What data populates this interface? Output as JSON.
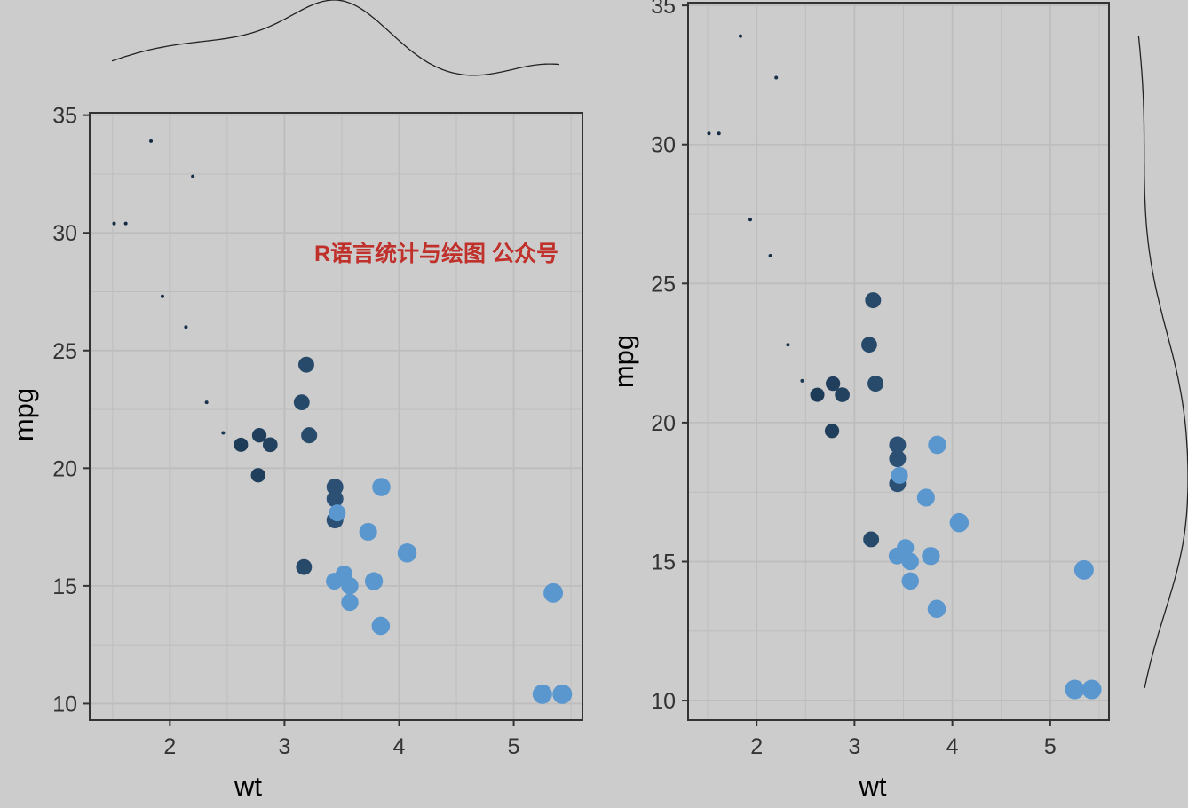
{
  "watermark": "R语言统计与绘图 公众号",
  "colors": {
    "background": "#cccccc",
    "grid": "#bdbdbd",
    "frame": "#333333",
    "density_line": "#222222",
    "watermark": "#c0312b",
    "low_color": "#132b43",
    "high_color": "#56b1f7"
  },
  "chart_data": [
    {
      "type": "scatter",
      "marginal": "x-density-top",
      "xlabel": "wt",
      "ylabel": "mpg",
      "xlim": [
        1.3,
        5.6
      ],
      "ylim": [
        9.3,
        35.1
      ],
      "xticks": [
        "2",
        "3",
        "4",
        "5"
      ],
      "yticks": [
        "10",
        "15",
        "20",
        "25",
        "30",
        "35"
      ],
      "grid": true,
      "point_size_and_color_encode": "wt",
      "points": [
        {
          "x": 1.513,
          "y": 30.4
        },
        {
          "x": 1.615,
          "y": 30.4
        },
        {
          "x": 1.835,
          "y": 33.9
        },
        {
          "x": 1.935,
          "y": 27.3
        },
        {
          "x": 2.14,
          "y": 26.0
        },
        {
          "x": 2.2,
          "y": 32.4
        },
        {
          "x": 2.32,
          "y": 22.8
        },
        {
          "x": 2.465,
          "y": 21.5
        },
        {
          "x": 2.62,
          "y": 21.0
        },
        {
          "x": 2.77,
          "y": 19.7
        },
        {
          "x": 2.78,
          "y": 21.4
        },
        {
          "x": 2.875,
          "y": 21.0
        },
        {
          "x": 3.15,
          "y": 22.8
        },
        {
          "x": 3.17,
          "y": 15.8
        },
        {
          "x": 3.19,
          "y": 24.4
        },
        {
          "x": 3.215,
          "y": 21.4
        },
        {
          "x": 3.435,
          "y": 15.2
        },
        {
          "x": 3.44,
          "y": 18.7
        },
        {
          "x": 3.44,
          "y": 19.2
        },
        {
          "x": 3.44,
          "y": 17.8
        },
        {
          "x": 3.46,
          "y": 18.1
        },
        {
          "x": 3.52,
          "y": 15.5
        },
        {
          "x": 3.57,
          "y": 14.3
        },
        {
          "x": 3.57,
          "y": 15.0
        },
        {
          "x": 3.73,
          "y": 17.3
        },
        {
          "x": 3.78,
          "y": 15.2
        },
        {
          "x": 3.84,
          "y": 13.3
        },
        {
          "x": 3.845,
          "y": 19.2
        },
        {
          "x": 4.07,
          "y": 16.4
        },
        {
          "x": 5.25,
          "y": 10.4
        },
        {
          "x": 5.345,
          "y": 14.7
        },
        {
          "x": 5.424,
          "y": 10.4
        }
      ]
    },
    {
      "type": "scatter",
      "marginal": "y-density-right",
      "xlabel": "wt",
      "ylabel": "mpg",
      "xlim": [
        1.3,
        5.6
      ],
      "ylim": [
        9.3,
        35.1
      ],
      "xticks": [
        "2",
        "3",
        "4",
        "5"
      ],
      "yticks": [
        "10",
        "15",
        "20",
        "25",
        "30",
        "35"
      ],
      "grid": true,
      "point_size_and_color_encode": "wt",
      "points": [
        {
          "x": 1.513,
          "y": 30.4
        },
        {
          "x": 1.615,
          "y": 30.4
        },
        {
          "x": 1.835,
          "y": 33.9
        },
        {
          "x": 1.935,
          "y": 27.3
        },
        {
          "x": 2.14,
          "y": 26.0
        },
        {
          "x": 2.2,
          "y": 32.4
        },
        {
          "x": 2.32,
          "y": 22.8
        },
        {
          "x": 2.465,
          "y": 21.5
        },
        {
          "x": 2.62,
          "y": 21.0
        },
        {
          "x": 2.77,
          "y": 19.7
        },
        {
          "x": 2.78,
          "y": 21.4
        },
        {
          "x": 2.875,
          "y": 21.0
        },
        {
          "x": 3.15,
          "y": 22.8
        },
        {
          "x": 3.17,
          "y": 15.8
        },
        {
          "x": 3.19,
          "y": 24.4
        },
        {
          "x": 3.215,
          "y": 21.4
        },
        {
          "x": 3.435,
          "y": 15.2
        },
        {
          "x": 3.44,
          "y": 18.7
        },
        {
          "x": 3.44,
          "y": 19.2
        },
        {
          "x": 3.44,
          "y": 17.8
        },
        {
          "x": 3.46,
          "y": 18.1
        },
        {
          "x": 3.52,
          "y": 15.5
        },
        {
          "x": 3.57,
          "y": 14.3
        },
        {
          "x": 3.57,
          "y": 15.0
        },
        {
          "x": 3.73,
          "y": 17.3
        },
        {
          "x": 3.78,
          "y": 15.2
        },
        {
          "x": 3.84,
          "y": 13.3
        },
        {
          "x": 3.845,
          "y": 19.2
        },
        {
          "x": 4.07,
          "y": 16.4
        },
        {
          "x": 5.25,
          "y": 10.4
        },
        {
          "x": 5.345,
          "y": 14.7
        },
        {
          "x": 5.424,
          "y": 10.4
        }
      ]
    }
  ]
}
